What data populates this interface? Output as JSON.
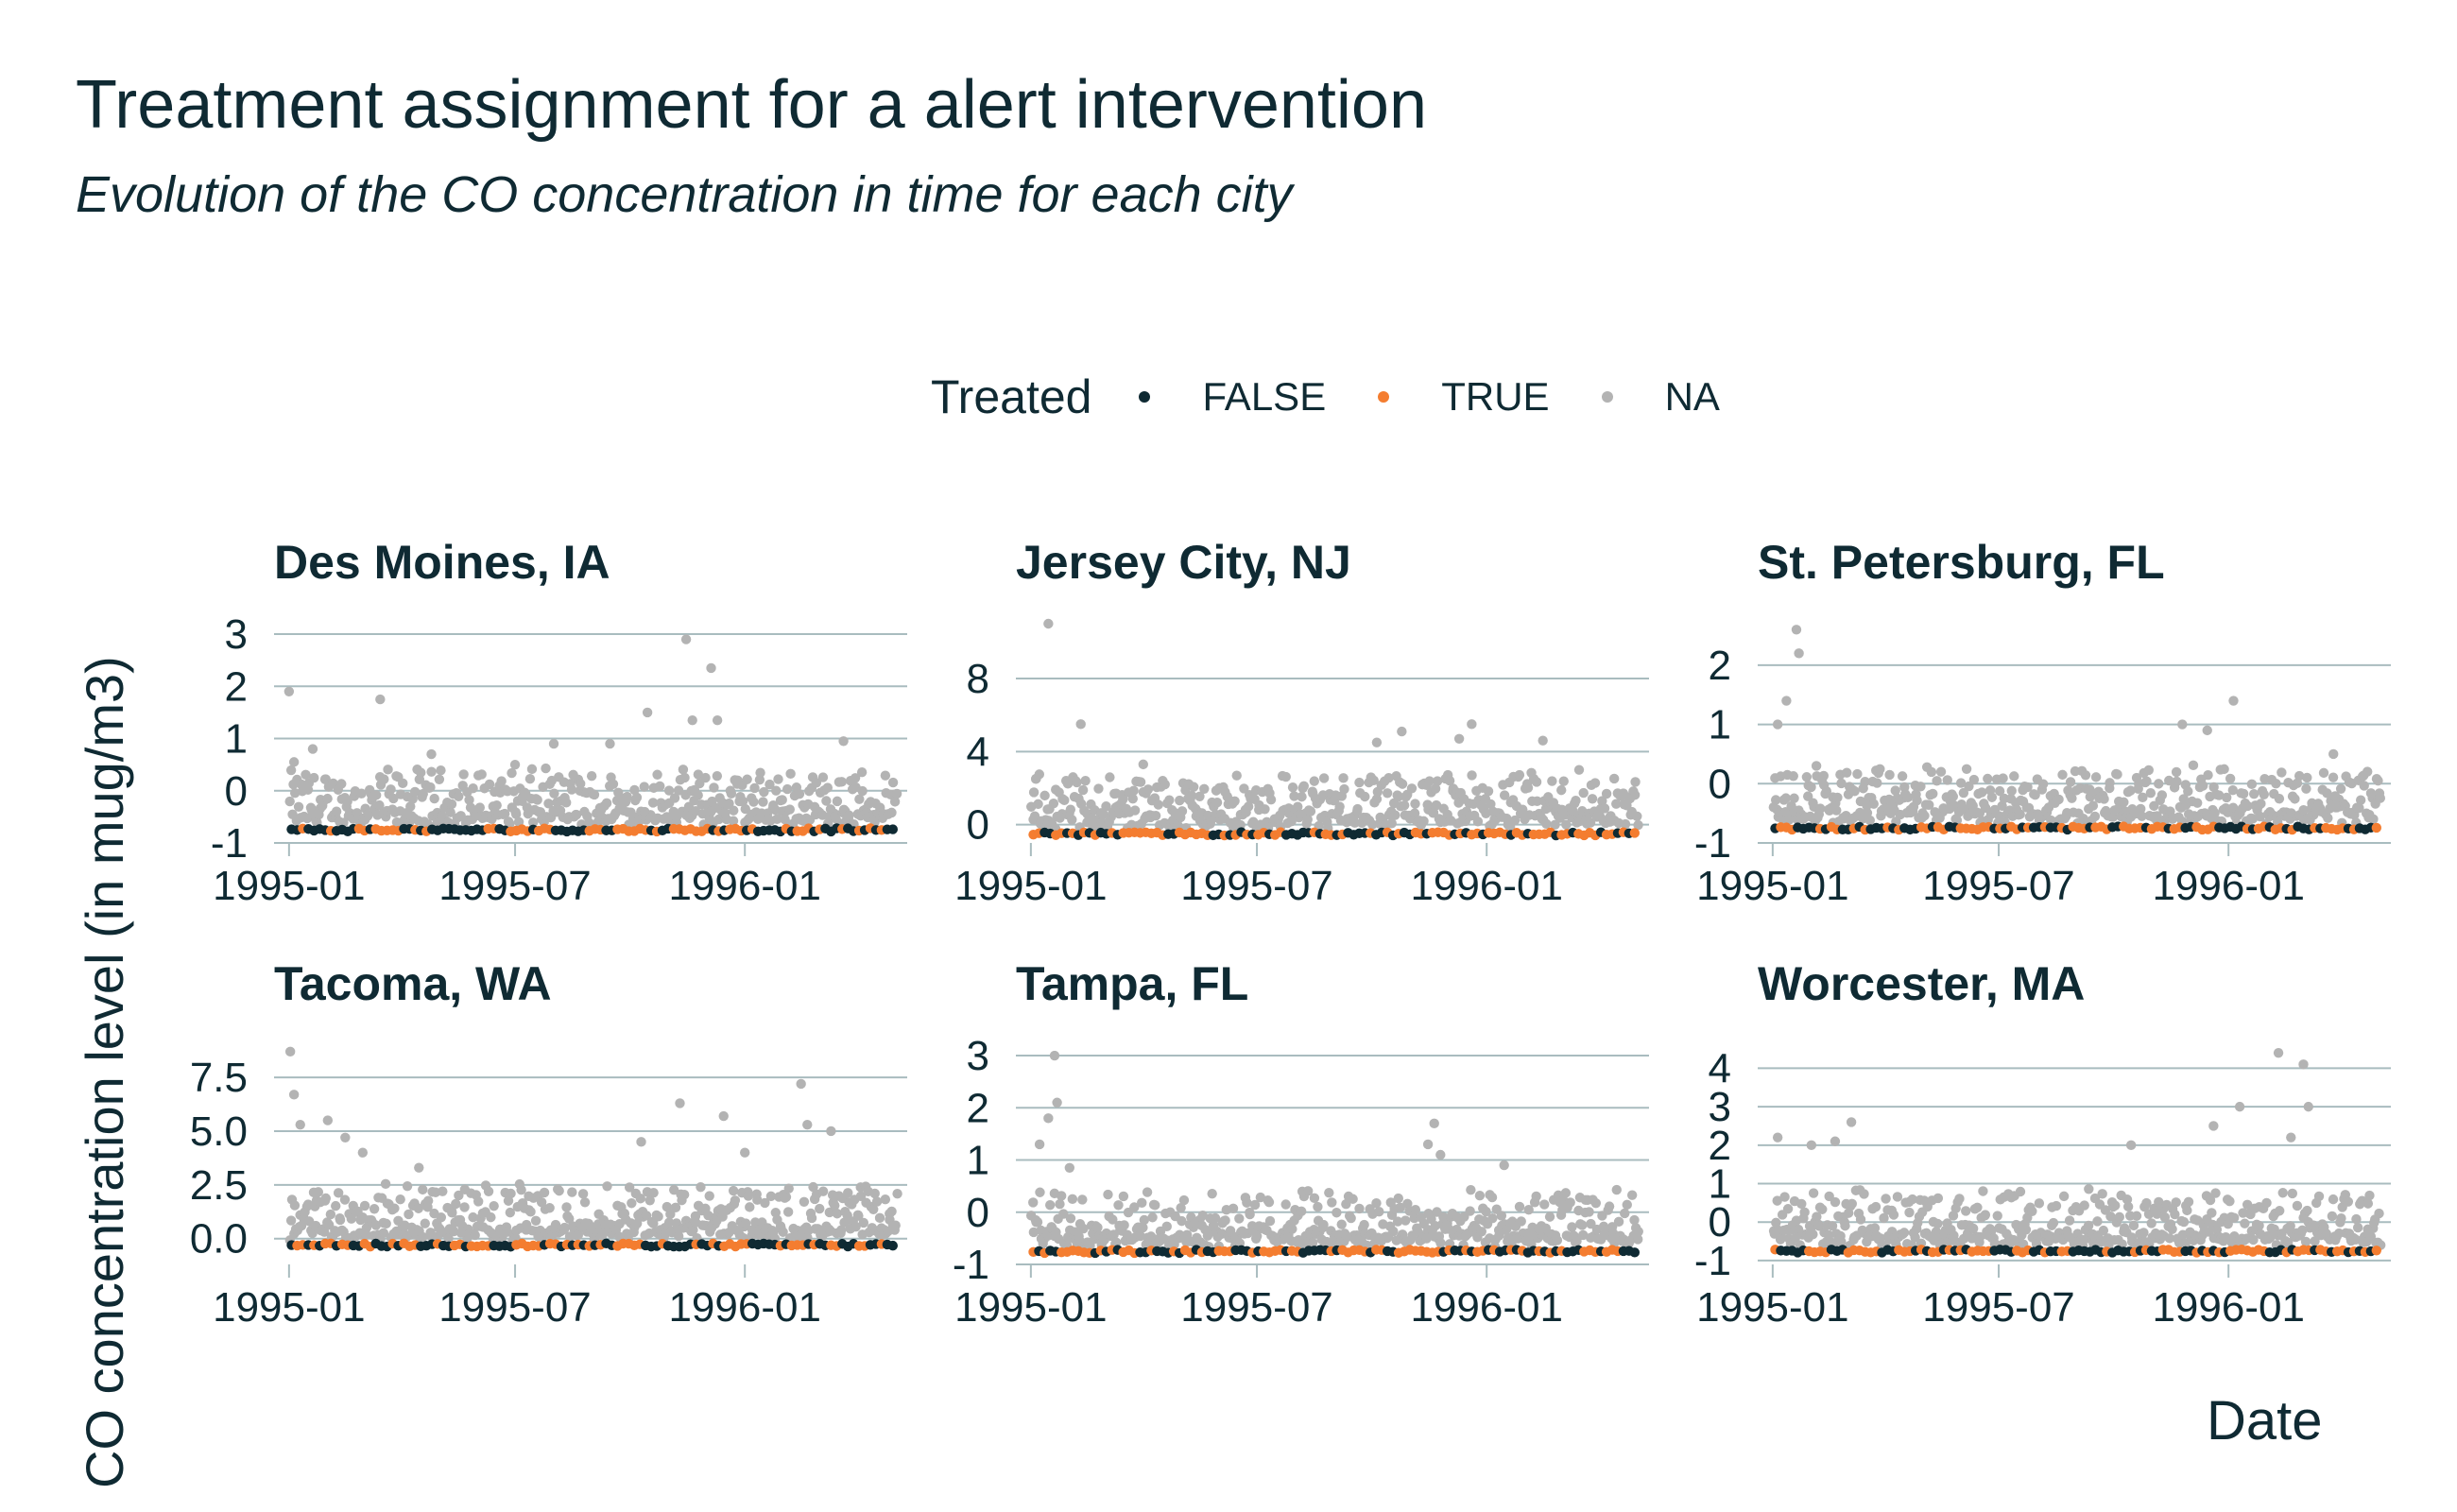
{
  "title": "Treatment assignment for a alert intervention",
  "subtitle": "Evolution of the CO concentration in time for each city",
  "legend": {
    "title": "Treated",
    "items": [
      {
        "label": "FALSE",
        "color": "#0f2a33"
      },
      {
        "label": "TRUE",
        "color": "#f47d30"
      },
      {
        "label": "NA",
        "color": "#b3b3b3"
      }
    ]
  },
  "chart_data": {
    "type": "scatter",
    "xlabel": "Date",
    "ylabel": "CO concentration level (in mug/m3)",
    "x_range": [
      "1994-12-20",
      "1996-05-10"
    ],
    "x_ticks": [
      "1995-01",
      "1995-07",
      "1996-01"
    ],
    "grid": "horizontal",
    "legend_position": "top",
    "series_colors": {
      "FALSE": "#0f2a33",
      "TRUE": "#f47d30",
      "NA": "#b3b3b3"
    },
    "panels": [
      {
        "city": "Des Moines, IA",
        "yticks": [
          -1,
          0,
          1,
          2,
          3
        ],
        "ytick_labels": [
          "-1",
          "0",
          "1",
          "2",
          "3"
        ],
        "ylim": [
          -1,
          3.2
        ],
        "baseline": -0.75,
        "peaks": [
          [
            "1995-01-01",
            1.9
          ],
          [
            "1995-01-05",
            0.55
          ],
          [
            "1995-01-20",
            0.8
          ],
          [
            "1995-03-15",
            1.75
          ],
          [
            "1995-04-25",
            0.7
          ],
          [
            "1995-07-01",
            0.5
          ],
          [
            "1995-08-01",
            0.9
          ],
          [
            "1995-09-15",
            0.9
          ],
          [
            "1995-10-15",
            1.5
          ],
          [
            "1995-11-15",
            2.9
          ],
          [
            "1995-11-20",
            1.35
          ],
          [
            "1995-12-05",
            2.35
          ],
          [
            "1995-12-10",
            1.35
          ],
          [
            "1996-03-20",
            0.95
          ]
        ]
      },
      {
        "city": "Jersey City, NJ",
        "yticks": [
          0,
          4,
          8
        ],
        "ytick_labels": [
          "0",
          "4",
          "8"
        ],
        "ylim": [
          -1,
          11
        ],
        "baseline": -0.5,
        "peaks": [
          [
            "1995-01-15",
            11
          ],
          [
            "1995-02-10",
            5.5
          ],
          [
            "1995-01-05",
            2.5
          ],
          [
            "1995-04-01",
            3.3
          ],
          [
            "1995-10-05",
            4.5
          ],
          [
            "1995-10-25",
            5.1
          ],
          [
            "1995-12-10",
            4.7
          ],
          [
            "1995-12-20",
            5.5
          ],
          [
            "1996-02-15",
            4.6
          ],
          [
            "1996-03-15",
            3.0
          ]
        ]
      },
      {
        "city": "St. Petersburg, FL",
        "yticks": [
          -1,
          0,
          1,
          2
        ],
        "ytick_labels": [
          "-1",
          "0",
          "1",
          "2"
        ],
        "ylim": [
          -1,
          2.7
        ],
        "baseline": -0.75,
        "peaks": [
          [
            "1995-01-05",
            1.0
          ],
          [
            "1995-01-12",
            1.4
          ],
          [
            "1995-01-20",
            2.6
          ],
          [
            "1995-01-22",
            2.2
          ],
          [
            "1995-02-05",
            0.3
          ],
          [
            "1995-11-25",
            1.0
          ],
          [
            "1995-12-15",
            0.9
          ],
          [
            "1996-01-05",
            1.4
          ],
          [
            "1996-03-25",
            0.5
          ]
        ]
      },
      {
        "city": "Tacoma, WA",
        "yticks": [
          0,
          2.5,
          5,
          7.5
        ],
        "ytick_labels": [
          "0.0",
          "2.5",
          "5.0",
          "7.5"
        ],
        "ylim": [
          -1.2,
          9
        ],
        "baseline": -0.3,
        "peaks": [
          [
            "1995-01-02",
            8.7
          ],
          [
            "1995-01-05",
            6.7
          ],
          [
            "1995-01-10",
            5.3
          ],
          [
            "1995-02-01",
            5.5
          ],
          [
            "1995-02-15",
            4.7
          ],
          [
            "1995-03-01",
            4.0
          ],
          [
            "1995-04-15",
            3.3
          ],
          [
            "1995-10-10",
            4.5
          ],
          [
            "1995-11-10",
            6.3
          ],
          [
            "1995-12-15",
            5.7
          ],
          [
            "1996-01-01",
            4.0
          ],
          [
            "1996-02-15",
            7.2
          ],
          [
            "1996-02-20",
            5.3
          ],
          [
            "1996-03-10",
            5.0
          ]
        ]
      },
      {
        "city": "Tampa, FL",
        "yticks": [
          -1,
          0,
          1,
          2,
          3
        ],
        "ytick_labels": [
          "-1",
          "0",
          "1",
          "2",
          "3"
        ],
        "ylim": [
          -1,
          3.2
        ],
        "baseline": -0.75,
        "peaks": [
          [
            "1995-01-08",
            1.3
          ],
          [
            "1995-01-15",
            1.8
          ],
          [
            "1995-01-20",
            3.0
          ],
          [
            "1995-01-22",
            2.1
          ],
          [
            "1995-02-01",
            0.85
          ],
          [
            "1995-11-15",
            1.3
          ],
          [
            "1995-11-20",
            1.7
          ],
          [
            "1995-11-25",
            1.1
          ],
          [
            "1996-01-15",
            0.9
          ]
        ]
      },
      {
        "city": "Worcester, MA",
        "yticks": [
          -1,
          0,
          1,
          2,
          3,
          4
        ],
        "ytick_labels": [
          "-1",
          "0",
          "1",
          "2",
          "3",
          "4"
        ],
        "ylim": [
          -1.1,
          4.6
        ],
        "baseline": -0.75,
        "peaks": [
          [
            "1995-01-05",
            2.2
          ],
          [
            "1995-02-01",
            2.0
          ],
          [
            "1995-02-20",
            2.1
          ],
          [
            "1995-03-05",
            2.6
          ],
          [
            "1995-10-15",
            2.0
          ],
          [
            "1995-12-20",
            2.5
          ],
          [
            "1996-01-10",
            3.0
          ],
          [
            "1996-02-10",
            4.4
          ],
          [
            "1996-03-01",
            4.1
          ],
          [
            "1996-03-05",
            3.0
          ],
          [
            "1996-02-20",
            2.2
          ]
        ]
      }
    ]
  }
}
